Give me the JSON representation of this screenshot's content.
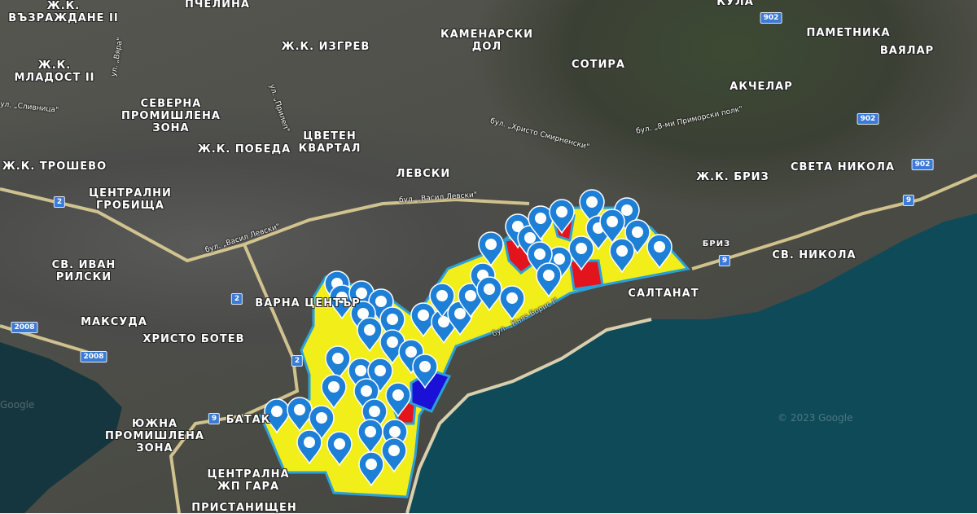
{
  "colors": {
    "zone_yellow": "#f1ee1a",
    "zone_red": "#e3141c",
    "zone_blue": "#1a10d6",
    "zone_border": "#2aa0d8",
    "pin": "#1e7fd6",
    "sea": "#0e4b5a",
    "road": "#e8d79a"
  },
  "map": {
    "districts": [
      "Ж.К.",
      "ВЪЗРАЖДАНЕ II",
      "ПЧЕЛИНА",
      "Ж.К.",
      "МЛАДОСТ II",
      "СЕВЕРНА",
      "ПРОМИШЛЕНА",
      "ЗОНА",
      "Ж.К. ИЗГРЕВ",
      "Ж.К. ПОБЕДА",
      "Ж.К. ТРОШЕВО",
      "ЦВЕТЕН",
      "КВАРТАЛ",
      "КАМЕНАРСКИ",
      "ДОЛ",
      "СОТИРА",
      "КУЛА",
      "ПАМЕТНИКА",
      "ВАЯЛАР",
      "АКЧЕЛАР",
      "ЛЕВСКИ",
      "Ж.К. БРИЗ",
      "СВЕТА НИКОЛА",
      "ЦЕНТРАЛНИ",
      "ГРОБИЩА",
      "СВ. ИВАН",
      "РИЛСКИ",
      "ВАРНА ЦЕНТЪР",
      "МАКСУДА",
      "ХРИСТО БОТЕВ",
      "БРИЗ",
      "СВ. НИКОЛА",
      "САЛТАНАТ",
      "ЮЖНА",
      "ПРОМИШЛЕНА",
      "ЗОНА",
      "БАТАК",
      "ЦЕНТРАЛНА",
      "ЖП ГАРА",
      "ПРИСТАНИЩЕН"
    ],
    "streets": [
      "ул. „Вяра\"",
      "ул. „Сливница\"",
      "ул. „Прилеп\"",
      "бул. „Христо Смирненски\"",
      "бул. „8-ми Приморски полк\"",
      "бул. „Васил Левски\"",
      "бул. „Васил Левски\"",
      "бул. „Княз Борис I\""
    ],
    "road_shields": [
      "902",
      "902",
      "902",
      "2",
      "2",
      "2",
      "9",
      "9",
      "9",
      "2008",
      "2008"
    ],
    "watermarks": [
      "Google",
      "© 2023 Google"
    ]
  }
}
